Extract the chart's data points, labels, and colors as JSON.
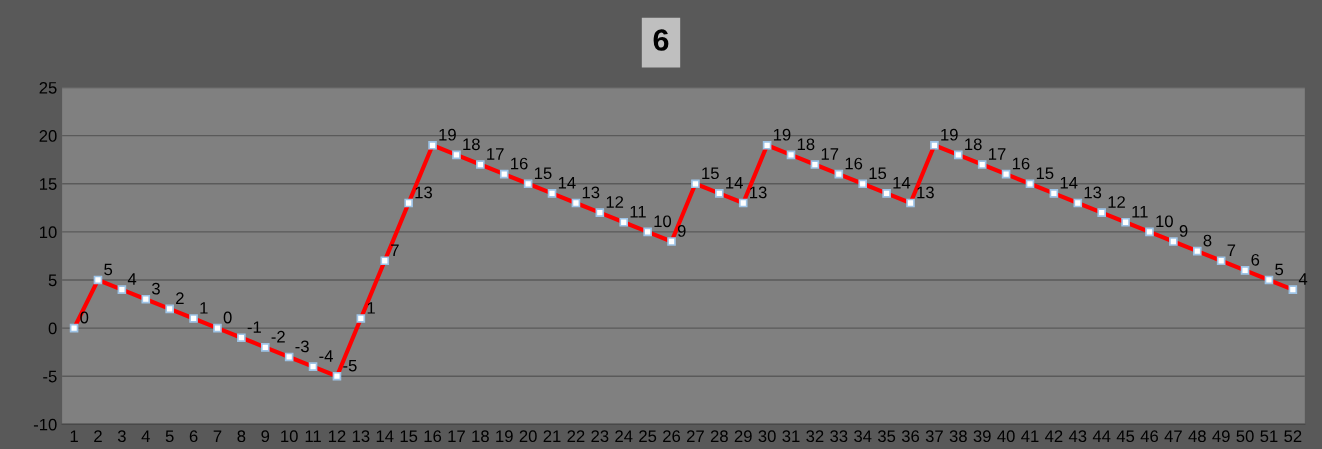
{
  "chart_data": {
    "type": "line",
    "title": "6",
    "categories": [
      "1",
      "2",
      "3",
      "4",
      "5",
      "6",
      "7",
      "8",
      "9",
      "10",
      "11",
      "12",
      "13",
      "14",
      "15",
      "16",
      "17",
      "18",
      "19",
      "20",
      "21",
      "22",
      "23",
      "24",
      "25",
      "26",
      "27",
      "28",
      "29",
      "30",
      "31",
      "32",
      "33",
      "34",
      "35",
      "36",
      "37",
      "38",
      "39",
      "40",
      "41",
      "42",
      "43",
      "44",
      "45",
      "46",
      "47",
      "48",
      "49",
      "50",
      "51",
      "52"
    ],
    "series": [
      {
        "color": "#ff0000",
        "values": [
          0,
          5,
          4,
          3,
          2,
          1,
          0,
          -1,
          -2,
          -3,
          -4,
          -5,
          1,
          7,
          13,
          19,
          18,
          17,
          16,
          15,
          14,
          13,
          12,
          11,
          10,
          9,
          15,
          14,
          13,
          19,
          18,
          17,
          16,
          15,
          14,
          13,
          19,
          18,
          17,
          16,
          15,
          14,
          13,
          12,
          11,
          10,
          9,
          8,
          7,
          6,
          5,
          4
        ]
      }
    ],
    "ylim": [
      -10,
      25
    ],
    "yticks": [
      -10,
      -5,
      0,
      5,
      10,
      15,
      20,
      25
    ],
    "grid": "y",
    "marker": "square",
    "line_style": "solid",
    "data_labels": true
  }
}
